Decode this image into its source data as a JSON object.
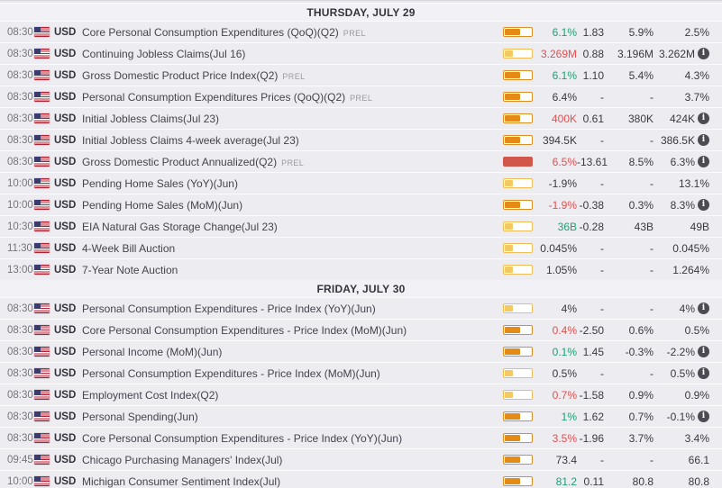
{
  "columns": [
    "time",
    "currency",
    "event",
    "volatility",
    "actual",
    "deviation",
    "consensus",
    "previous"
  ],
  "icons": {
    "info_glyph": "i",
    "flag": "us-flag"
  },
  "colors": {
    "positive": "#1f9e73",
    "negative": "#e1514e",
    "orange_fill": "#e48b17",
    "orange_border": "#db9026",
    "yellow_fill": "#f5c862",
    "yellow_border": "#f0bd59",
    "red_fill": "#d2574b"
  },
  "days": [
    {
      "label": "THURSDAY, JULY 29",
      "events": [
        {
          "time": "08:30",
          "currency": "USD",
          "name": "Core Personal Consumption Expenditures (QoQ)(Q2)",
          "prel": "PREL",
          "impact": "high",
          "actual": "6.1%",
          "actual_color": "green",
          "deviation": "1.83",
          "consensus": "5.9%",
          "previous": "2.5%",
          "info": false
        },
        {
          "time": "08:30",
          "currency": "USD",
          "name": "Continuing Jobless Claims(Jul 16)",
          "prel": "",
          "impact": "low",
          "actual": "3.269M",
          "actual_color": "red",
          "deviation": "0.88",
          "consensus": "3.196M",
          "previous": "3.262M",
          "info": true
        },
        {
          "time": "08:30",
          "currency": "USD",
          "name": "Gross Domestic Product Price Index(Q2)",
          "prel": "PREL",
          "impact": "high",
          "actual": "6.1%",
          "actual_color": "green",
          "deviation": "1.10",
          "consensus": "5.4%",
          "previous": "4.3%",
          "info": false
        },
        {
          "time": "08:30",
          "currency": "USD",
          "name": "Personal Consumption Expenditures Prices (QoQ)(Q2)",
          "prel": "PREL",
          "impact": "high",
          "actual": "6.4%",
          "actual_color": "neutral",
          "deviation": "-",
          "consensus": "-",
          "previous": "3.7%",
          "info": false
        },
        {
          "time": "08:30",
          "currency": "USD",
          "name": "Initial Jobless Claims(Jul 23)",
          "prel": "",
          "impact": "high",
          "actual": "400K",
          "actual_color": "red",
          "deviation": "0.61",
          "consensus": "380K",
          "previous": "424K",
          "info": true
        },
        {
          "time": "08:30",
          "currency": "USD",
          "name": "Initial Jobless Claims 4-week average(Jul 23)",
          "prel": "",
          "impact": "high",
          "actual": "394.5K",
          "actual_color": "neutral",
          "deviation": "-",
          "consensus": "-",
          "previous": "386.5K",
          "info": true
        },
        {
          "time": "08:30",
          "currency": "USD",
          "name": "Gross Domestic Product Annualized(Q2)",
          "prel": "PREL",
          "impact": "triggered",
          "actual": "6.5%",
          "actual_color": "red",
          "deviation": "-13.61",
          "consensus": "8.5%",
          "previous": "6.3%",
          "info": true
        },
        {
          "time": "10:00",
          "currency": "USD",
          "name": "Pending Home Sales (YoY)(Jun)",
          "prel": "",
          "impact": "low",
          "actual": "-1.9%",
          "actual_color": "neutral",
          "deviation": "-",
          "consensus": "-",
          "previous": "13.1%",
          "info": false
        },
        {
          "time": "10:00",
          "currency": "USD",
          "name": "Pending Home Sales (MoM)(Jun)",
          "prel": "",
          "impact": "high",
          "actual": "-1.9%",
          "actual_color": "red",
          "deviation": "-0.38",
          "consensus": "0.3%",
          "previous": "8.3%",
          "info": true
        },
        {
          "time": "10:30",
          "currency": "USD",
          "name": "EIA Natural Gas Storage Change(Jul 23)",
          "prel": "",
          "impact": "low",
          "actual": "36B",
          "actual_color": "green",
          "deviation": "-0.28",
          "consensus": "43B",
          "previous": "49B",
          "info": false
        },
        {
          "time": "11:30",
          "currency": "USD",
          "name": "4-Week Bill Auction",
          "prel": "",
          "impact": "low",
          "actual": "0.045%",
          "actual_color": "neutral",
          "deviation": "-",
          "consensus": "-",
          "previous": "0.045%",
          "info": false
        },
        {
          "time": "13:00",
          "currency": "USD",
          "name": "7-Year Note Auction",
          "prel": "",
          "impact": "low",
          "actual": "1.05%",
          "actual_color": "neutral",
          "deviation": "-",
          "consensus": "-",
          "previous": "1.264%",
          "info": false
        }
      ]
    },
    {
      "label": "FRIDAY, JULY 30",
      "events": [
        {
          "time": "08:30",
          "currency": "USD",
          "name": "Personal Consumption Expenditures - Price Index (YoY)(Jun)",
          "prel": "",
          "impact": "low",
          "actual": "4%",
          "actual_color": "neutral",
          "deviation": "-",
          "consensus": "-",
          "previous": "4%",
          "info": true
        },
        {
          "time": "08:30",
          "currency": "USD",
          "name": "Core Personal Consumption Expenditures - Price Index (MoM)(Jun)",
          "prel": "",
          "impact": "high",
          "actual": "0.4%",
          "actual_color": "red",
          "deviation": "-2.50",
          "consensus": "0.6%",
          "previous": "0.5%",
          "info": false
        },
        {
          "time": "08:30",
          "currency": "USD",
          "name": "Personal Income (MoM)(Jun)",
          "prel": "",
          "impact": "high",
          "actual": "0.1%",
          "actual_color": "green",
          "deviation": "1.45",
          "consensus": "-0.3%",
          "previous": "-2.2%",
          "info": true
        },
        {
          "time": "08:30",
          "currency": "USD",
          "name": "Personal Consumption Expenditures - Price Index (MoM)(Jun)",
          "prel": "",
          "impact": "low",
          "actual": "0.5%",
          "actual_color": "neutral",
          "deviation": "-",
          "consensus": "-",
          "previous": "0.5%",
          "info": true
        },
        {
          "time": "08:30",
          "currency": "USD",
          "name": "Employment Cost Index(Q2)",
          "prel": "",
          "impact": "low",
          "actual": "0.7%",
          "actual_color": "red",
          "deviation": "-1.58",
          "consensus": "0.9%",
          "previous": "0.9%",
          "info": false
        },
        {
          "time": "08:30",
          "currency": "USD",
          "name": "Personal Spending(Jun)",
          "prel": "",
          "impact": "high",
          "actual": "1%",
          "actual_color": "green",
          "deviation": "1.62",
          "consensus": "0.7%",
          "previous": "-0.1%",
          "info": true
        },
        {
          "time": "08:30",
          "currency": "USD",
          "name": "Core Personal Consumption Expenditures - Price Index (YoY)(Jun)",
          "prel": "",
          "impact": "high",
          "actual": "3.5%",
          "actual_color": "red",
          "deviation": "-1.96",
          "consensus": "3.7%",
          "previous": "3.4%",
          "info": false
        },
        {
          "time": "09:45",
          "currency": "USD",
          "name": "Chicago Purchasing Managers' Index(Jul)",
          "prel": "",
          "impact": "high",
          "actual": "73.4",
          "actual_color": "neutral",
          "deviation": "-",
          "consensus": "-",
          "previous": "66.1",
          "info": false
        },
        {
          "time": "10:00",
          "currency": "USD",
          "name": "Michigan Consumer Sentiment Index(Jul)",
          "prel": "",
          "impact": "high",
          "actual": "81.2",
          "actual_color": "green",
          "deviation": "0.11",
          "consensus": "80.8",
          "previous": "80.8",
          "info": false
        }
      ]
    }
  ]
}
